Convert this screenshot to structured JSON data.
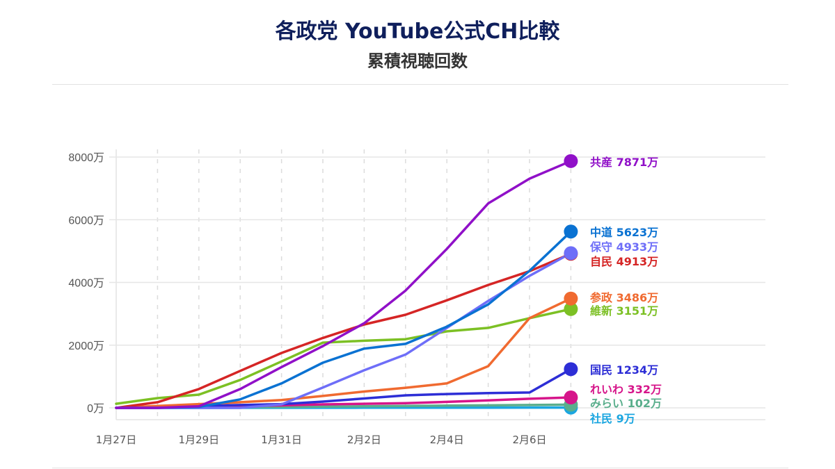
{
  "header": {
    "title": "各政党 YouTube公式CH比較",
    "subtitle": "累積視聴回数"
  },
  "chart_data": {
    "type": "line",
    "title": "各政党 YouTube公式CH比較",
    "subtitle": "累積視聴回数",
    "xlabel": "",
    "ylabel": "",
    "ylim": [
      0,
      8000
    ],
    "y_unit": "万",
    "yticks": [
      "0万",
      "2000万",
      "4000万",
      "6000万",
      "8000万"
    ],
    "ytick_values": [
      0,
      2000,
      4000,
      6000,
      8000
    ],
    "x": [
      "1月27日",
      "1月28日",
      "1月29日",
      "1月30日",
      "1月31日",
      "2月1日",
      "2月2日",
      "2月3日",
      "2月4日",
      "2月5日",
      "2月6日",
      "2月7日"
    ],
    "xtick_labels": [
      "1月27日",
      "1月29日",
      "1月31日",
      "2月2日",
      "2月4日",
      "2月6日"
    ],
    "grid": true,
    "legend_position": "end-of-line labels",
    "series": [
      {
        "name": "共産",
        "label": "共産 7871万",
        "color": "#9010c8",
        "values": [
          0,
          0,
          50,
          600,
          1300,
          1970,
          2700,
          3740,
          5070,
          6520,
          7310,
          7871
        ]
      },
      {
        "name": "中道",
        "label": "中道 5623万",
        "color": "#0a72d2",
        "values": [
          0,
          0,
          30,
          270,
          780,
          1440,
          1890,
          2040,
          2590,
          3300,
          4370,
          5623
        ]
      },
      {
        "name": "保守",
        "label": "保守 4933万",
        "color": "#6e6ef8",
        "values": [
          0,
          0,
          0,
          0,
          110,
          650,
          1200,
          1700,
          2550,
          3410,
          4210,
          4933
        ]
      },
      {
        "name": "自民",
        "label": "自民 4913万",
        "color": "#d52525",
        "values": [
          0,
          180,
          600,
          1180,
          1750,
          2230,
          2660,
          2970,
          3430,
          3920,
          4360,
          4913
        ]
      },
      {
        "name": "参政",
        "label": "参政 3486万",
        "color": "#f06a30",
        "values": [
          0,
          60,
          120,
          180,
          250,
          380,
          520,
          640,
          780,
          1330,
          2860,
          3486
        ]
      },
      {
        "name": "維新",
        "label": "維新 3151万",
        "color": "#7cc024",
        "values": [
          130,
          310,
          420,
          890,
          1480,
          2080,
          2140,
          2190,
          2440,
          2550,
          2860,
          3151
        ]
      },
      {
        "name": "国民",
        "label": "国民 1234万",
        "color": "#2d2ed6",
        "values": [
          0,
          30,
          60,
          90,
          120,
          200,
          300,
          400,
          440,
          470,
          490,
          1234
        ]
      },
      {
        "name": "れいわ",
        "label": "れいわ 332万",
        "color": "#d6158a",
        "values": [
          0,
          10,
          25,
          50,
          80,
          110,
          130,
          150,
          190,
          240,
          290,
          332
        ]
      },
      {
        "name": "みらい",
        "label": "みらい 102万",
        "color": "#5aae8c",
        "values": [
          0,
          5,
          10,
          20,
          30,
          40,
          50,
          60,
          70,
          80,
          90,
          102
        ]
      },
      {
        "name": "社民",
        "label": "社民 9万",
        "color": "#1ba6e0",
        "values": [
          0,
          1,
          1,
          2,
          3,
          3,
          4,
          5,
          6,
          7,
          8,
          9
        ]
      }
    ],
    "label_positions_y": [
      233,
      334,
      355,
      376,
      428,
      447,
      532,
      560,
      580,
      602
    ]
  }
}
